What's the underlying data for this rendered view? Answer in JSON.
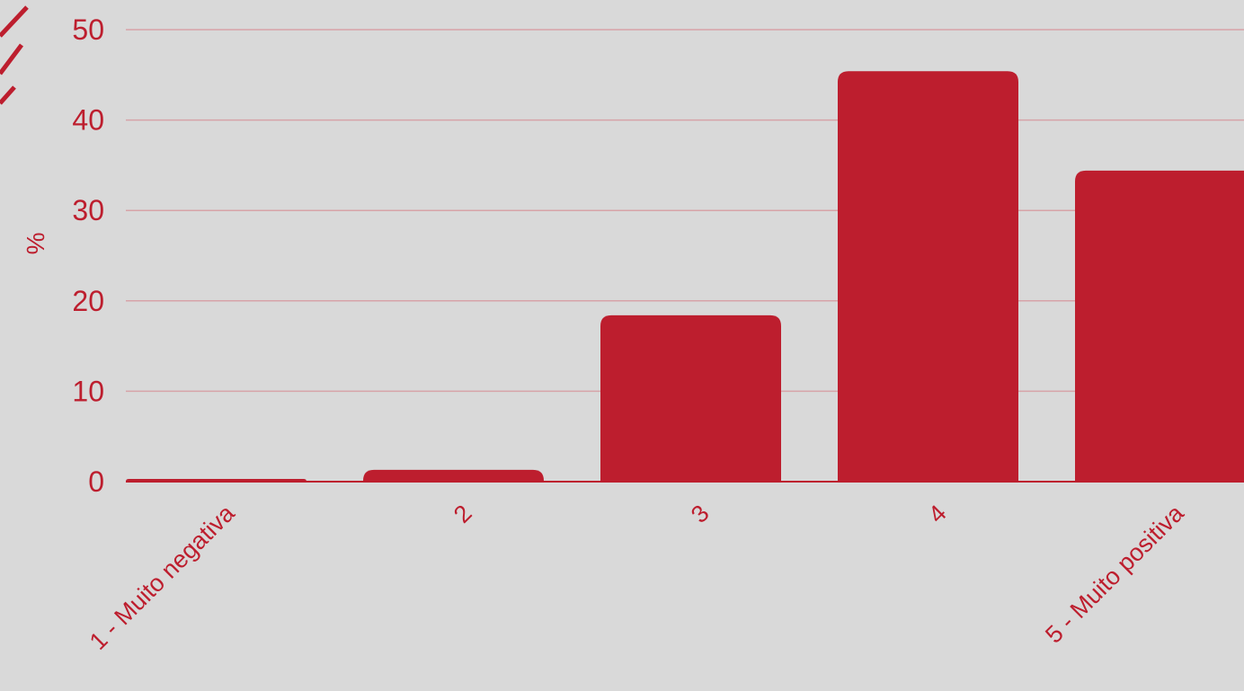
{
  "chart_data": {
    "type": "bar",
    "categories": [
      "1 - Muito negativa",
      "2",
      "3",
      "4",
      "5 - Muito positiva"
    ],
    "values": [
      0.3,
      1.3,
      18.4,
      45.4,
      34.4
    ],
    "ylabel": "%",
    "ylim": [
      0,
      50
    ],
    "yticks": [
      0,
      10,
      20,
      30,
      40,
      50
    ],
    "grid": true
  },
  "colors": {
    "background": "#d9d9d9",
    "bar": "#bd1e2e",
    "text": "#bd1e2e",
    "grid": "#d7a3a8"
  }
}
